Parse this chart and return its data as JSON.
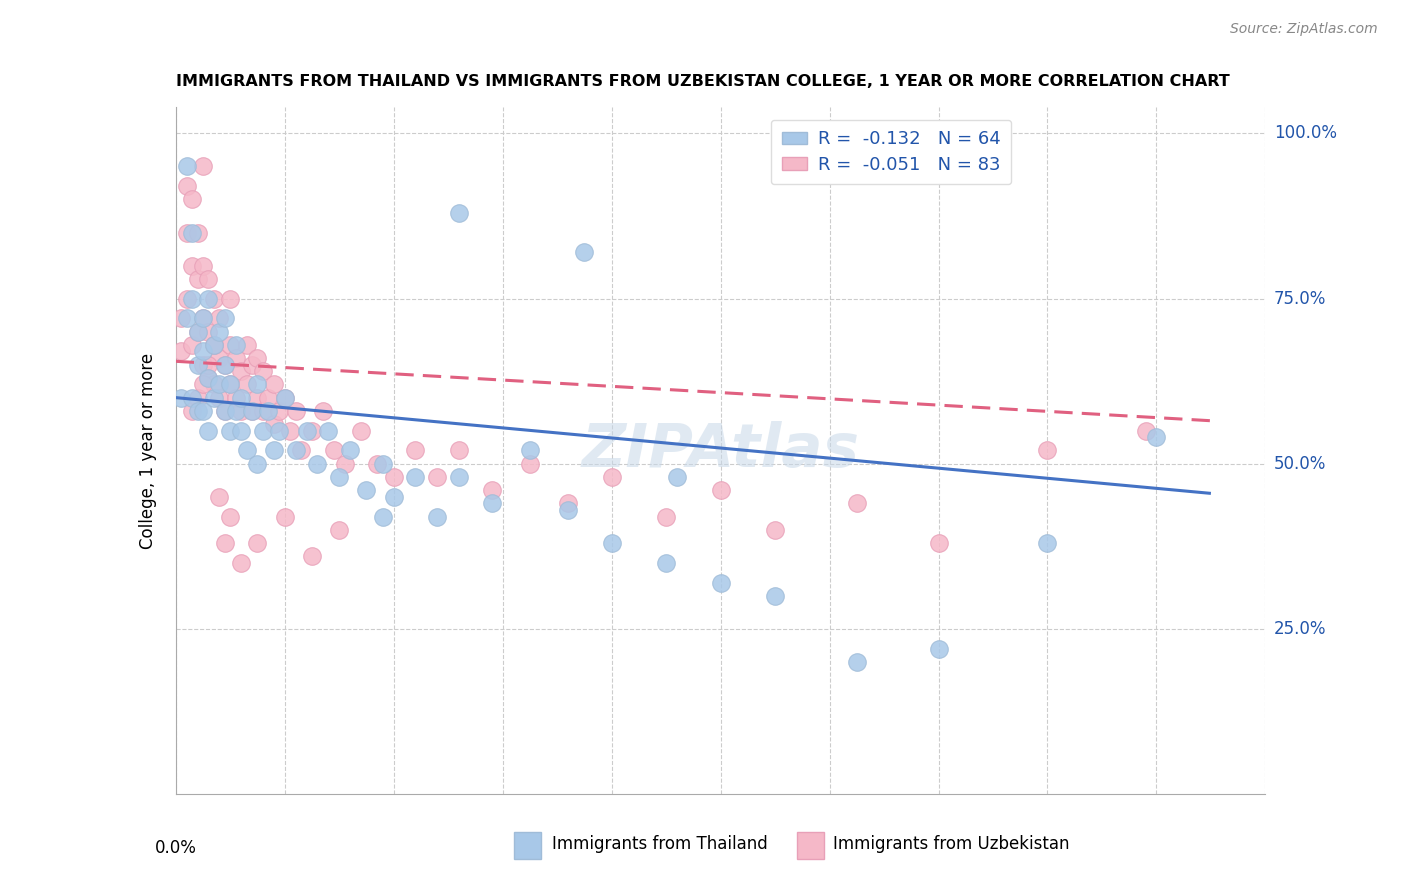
{
  "title": "IMMIGRANTS FROM THAILAND VS IMMIGRANTS FROM UZBEKISTAN COLLEGE, 1 YEAR OR MORE CORRELATION CHART",
  "source": "Source: ZipAtlas.com",
  "ylabel": "College, 1 year or more",
  "thailand_color": "#a8c8e8",
  "thailand_edge_color": "#a0bcd8",
  "uzbekistan_color": "#f5b8c8",
  "uzbekistan_edge_color": "#e8a0b8",
  "trend_thailand_color": "#4472c4",
  "trend_uzbekistan_color": "#e06080",
  "background_color": "#ffffff",
  "grid_color": "#cccccc",
  "legend_text_color": "#2255aa",
  "right_axis_color": "#2255aa",
  "xlim": [
    0.0,
    0.2
  ],
  "ylim": [
    0.0,
    1.04
  ],
  "ytick_vals": [
    0.0,
    0.25,
    0.5,
    0.75,
    1.0
  ],
  "ytick_labels_right": [
    "100.0%",
    "75.0%",
    "50.0%",
    "25.0%"
  ],
  "ytick_vals_right": [
    1.0,
    0.75,
    0.5,
    0.25
  ],
  "xtick_vals": [
    0.0,
    0.02,
    0.04,
    0.06,
    0.08,
    0.1,
    0.12,
    0.14,
    0.16,
    0.18,
    0.2
  ],
  "thailand_scatter_x": [
    0.001,
    0.002,
    0.002,
    0.003,
    0.003,
    0.003,
    0.004,
    0.004,
    0.004,
    0.005,
    0.005,
    0.005,
    0.006,
    0.006,
    0.006,
    0.007,
    0.007,
    0.008,
    0.008,
    0.009,
    0.009,
    0.009,
    0.01,
    0.01,
    0.011,
    0.011,
    0.012,
    0.012,
    0.013,
    0.014,
    0.015,
    0.015,
    0.016,
    0.017,
    0.018,
    0.019,
    0.02,
    0.022,
    0.024,
    0.026,
    0.028,
    0.03,
    0.032,
    0.035,
    0.038,
    0.04,
    0.044,
    0.048,
    0.052,
    0.058,
    0.065,
    0.072,
    0.08,
    0.09,
    0.1,
    0.11,
    0.125,
    0.14,
    0.16,
    0.18,
    0.052,
    0.075,
    0.038,
    0.092
  ],
  "thailand_scatter_y": [
    0.6,
    0.95,
    0.72,
    0.85,
    0.6,
    0.75,
    0.65,
    0.7,
    0.58,
    0.67,
    0.72,
    0.58,
    0.63,
    0.75,
    0.55,
    0.68,
    0.6,
    0.62,
    0.7,
    0.58,
    0.65,
    0.72,
    0.55,
    0.62,
    0.58,
    0.68,
    0.55,
    0.6,
    0.52,
    0.58,
    0.62,
    0.5,
    0.55,
    0.58,
    0.52,
    0.55,
    0.6,
    0.52,
    0.55,
    0.5,
    0.55,
    0.48,
    0.52,
    0.46,
    0.5,
    0.45,
    0.48,
    0.42,
    0.48,
    0.44,
    0.52,
    0.43,
    0.38,
    0.35,
    0.32,
    0.3,
    0.2,
    0.22,
    0.38,
    0.54,
    0.88,
    0.82,
    0.42,
    0.48
  ],
  "uzbekistan_scatter_x": [
    0.001,
    0.001,
    0.002,
    0.002,
    0.002,
    0.003,
    0.003,
    0.003,
    0.004,
    0.004,
    0.004,
    0.005,
    0.005,
    0.005,
    0.005,
    0.006,
    0.006,
    0.006,
    0.007,
    0.007,
    0.007,
    0.008,
    0.008,
    0.008,
    0.009,
    0.009,
    0.01,
    0.01,
    0.01,
    0.011,
    0.011,
    0.012,
    0.012,
    0.013,
    0.013,
    0.014,
    0.014,
    0.015,
    0.015,
    0.016,
    0.016,
    0.017,
    0.018,
    0.018,
    0.019,
    0.02,
    0.021,
    0.022,
    0.023,
    0.025,
    0.027,
    0.029,
    0.031,
    0.034,
    0.037,
    0.04,
    0.044,
    0.048,
    0.052,
    0.058,
    0.065,
    0.072,
    0.08,
    0.09,
    0.1,
    0.11,
    0.125,
    0.14,
    0.16,
    0.178,
    0.003,
    0.004,
    0.005,
    0.006,
    0.007,
    0.008,
    0.009,
    0.01,
    0.012,
    0.015,
    0.02,
    0.025,
    0.03
  ],
  "uzbekistan_scatter_y": [
    0.67,
    0.72,
    0.92,
    0.75,
    0.85,
    0.68,
    0.8,
    0.9,
    0.7,
    0.78,
    0.85,
    0.65,
    0.72,
    0.8,
    0.95,
    0.63,
    0.7,
    0.78,
    0.62,
    0.68,
    0.75,
    0.6,
    0.66,
    0.72,
    0.58,
    0.65,
    0.62,
    0.68,
    0.75,
    0.6,
    0.66,
    0.58,
    0.64,
    0.62,
    0.68,
    0.58,
    0.65,
    0.6,
    0.66,
    0.58,
    0.64,
    0.6,
    0.62,
    0.56,
    0.58,
    0.6,
    0.55,
    0.58,
    0.52,
    0.55,
    0.58,
    0.52,
    0.5,
    0.55,
    0.5,
    0.48,
    0.52,
    0.48,
    0.52,
    0.46,
    0.5,
    0.44,
    0.48,
    0.42,
    0.46,
    0.4,
    0.44,
    0.38,
    0.52,
    0.55,
    0.58,
    0.6,
    0.62,
    0.65,
    0.68,
    0.45,
    0.38,
    0.42,
    0.35,
    0.38,
    0.42,
    0.36,
    0.4
  ],
  "trend_thailand_x0": 0.0,
  "trend_thailand_x1": 0.19,
  "trend_thailand_y0": 0.6,
  "trend_thailand_y1": 0.455,
  "trend_uzbekistan_x0": 0.0,
  "trend_uzbekistan_x1": 0.19,
  "trend_uzbekistan_y0": 0.655,
  "trend_uzbekistan_y1": 0.565
}
